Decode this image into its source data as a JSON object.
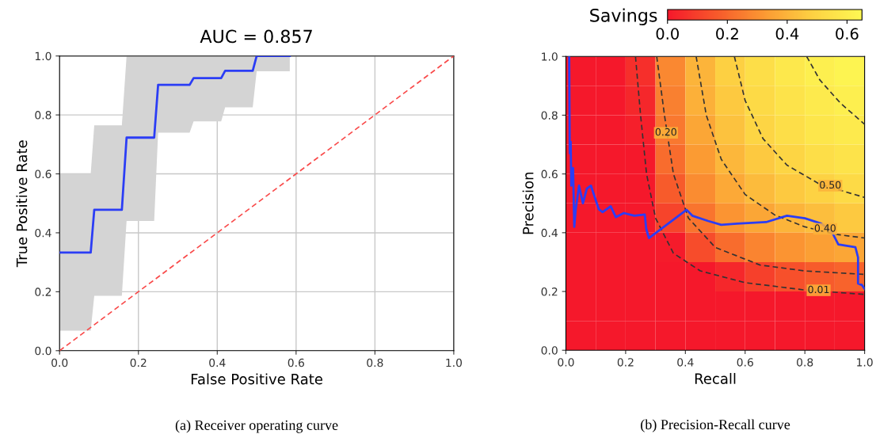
{
  "chart_data": [
    {
      "type": "line",
      "title": "AUC = 0.857",
      "xlabel": "False Positive Rate",
      "ylabel": "True Positive Rate",
      "grid": true,
      "xlim": [
        0,
        1
      ],
      "ylim": [
        0,
        1
      ],
      "xticks": [
        {
          "value": 0,
          "label": "0.0"
        },
        {
          "value": 0.2,
          "label": "0.2"
        },
        {
          "value": 0.4,
          "label": "0.4"
        },
        {
          "value": 0.6,
          "label": "0.6"
        },
        {
          "value": 0.8,
          "label": "0.8"
        },
        {
          "value": 1,
          "label": "1.0"
        }
      ],
      "yticks": [
        {
          "value": 0,
          "label": "0.0"
        },
        {
          "value": 0.2,
          "label": "0.2"
        },
        {
          "value": 0.4,
          "label": "0.4"
        },
        {
          "value": 0.6,
          "label": "0.6"
        },
        {
          "value": 0.8,
          "label": "0.8"
        },
        {
          "value": 1,
          "label": "1.0"
        }
      ],
      "series": [
        {
          "type": "line",
          "color": "#2b3df5",
          "line_style": "solid",
          "x": [
            0,
            0.079,
            0.088,
            0.158,
            0.17,
            0.24,
            0.25,
            0.33,
            0.34,
            0.41,
            0.42,
            0.49,
            0.5,
            0.584
          ],
          "values": [
            0.333,
            0.333,
            0.478,
            0.478,
            0.723,
            0.723,
            0.902,
            0.902,
            0.925,
            0.925,
            0.95,
            0.95,
            1.0,
            1.0
          ],
          "lower": [
            0.068,
            0.068,
            0.186,
            0.186,
            0.44,
            0.44,
            0.74,
            0.74,
            0.778,
            0.778,
            0.826,
            0.826,
            0.948,
            0.948
          ],
          "upper": [
            0.6,
            0.6,
            0.765,
            0.765,
            1.0,
            1.0,
            1.0,
            1.0,
            1.0,
            1.0,
            1.0,
            1.0,
            1.0,
            1.0
          ]
        },
        {
          "type": "line",
          "color": "#f94a4a",
          "line_style": "dashed",
          "x": [
            0,
            1
          ],
          "values": [
            0,
            1
          ]
        }
      ],
      "annotations": [
        "(a) Receiver operating curve"
      ]
    },
    {
      "type": "heatmap",
      "clabel": "Savings",
      "clim": [
        0,
        0.65
      ],
      "cticks": [
        {
          "value": 0,
          "label": "0.0"
        },
        {
          "value": 0.2,
          "label": "0.2"
        },
        {
          "value": 0.4,
          "label": "0.4"
        },
        {
          "value": 0.6,
          "label": "0.6"
        }
      ],
      "categories": [
        null,
        null,
        null,
        null,
        null,
        null,
        null,
        null,
        null,
        null
      ],
      "y_categories": [
        null,
        null,
        null,
        null,
        null,
        null,
        null,
        null,
        null,
        null
      ],
      "cells": [
        [
          0,
          0,
          0.06,
          0.28,
          0.4,
          0.48,
          0.54,
          0.58,
          0.61,
          0.63
        ],
        [
          0,
          0,
          0.04,
          0.26,
          0.39,
          0.46,
          0.52,
          0.56,
          0.59,
          0.61
        ],
        [
          0,
          0,
          0.02,
          0.24,
          0.36,
          0.44,
          0.5,
          0.54,
          0.57,
          0.59
        ],
        [
          0,
          0,
          0,
          0.21,
          0.33,
          0.41,
          0.46,
          0.5,
          0.54,
          0.56
        ],
        [
          0,
          0,
          0,
          0.17,
          0.29,
          0.37,
          0.42,
          0.46,
          0.49,
          0.52
        ],
        [
          0,
          0,
          0,
          0.11,
          0.23,
          0.31,
          0.36,
          0.4,
          0.43,
          0.46
        ],
        [
          0,
          0,
          0,
          0.01,
          0.13,
          0.21,
          0.27,
          0.31,
          0.34,
          0.36
        ],
        [
          0,
          0,
          0,
          0,
          0,
          0.04,
          0.1,
          0.14,
          0.17,
          0.19
        ],
        [
          0,
          0,
          0,
          0,
          0,
          0,
          0,
          0,
          0,
          0
        ],
        [
          0,
          0,
          0,
          0,
          0,
          0,
          0,
          0,
          0,
          0
        ]
      ]
    },
    {
      "type": "line",
      "xlabel": "Recall",
      "ylabel": "Precision",
      "xlim": [
        0,
        1
      ],
      "ylim": [
        0,
        1
      ],
      "xticks": [
        {
          "value": 0,
          "label": "0.0"
        },
        {
          "value": 0.2,
          "label": "0.2"
        },
        {
          "value": 0.4,
          "label": "0.4"
        },
        {
          "value": 0.6,
          "label": "0.6"
        },
        {
          "value": 0.8,
          "label": "0.8"
        },
        {
          "value": 1,
          "label": "1.0"
        }
      ],
      "yticks": [
        {
          "value": 0,
          "label": "0.0"
        },
        {
          "value": 0.2,
          "label": "0.2"
        },
        {
          "value": 0.4,
          "label": "0.4"
        },
        {
          "value": 0.6,
          "label": "0.6"
        },
        {
          "value": 0.8,
          "label": "0.8"
        },
        {
          "value": 1,
          "label": "1.0"
        }
      ],
      "series": [
        {
          "type": "line",
          "color": "#333333",
          "line_style": "dashed",
          "x": [
            0.233,
            0.25,
            0.27,
            0.3,
            0.36,
            0.45,
            0.6,
            0.8,
            1.0
          ],
          "values": [
            1.0,
            0.8,
            0.6,
            0.45,
            0.33,
            0.27,
            0.23,
            0.205,
            0.19
          ]
        },
        {
          "type": "line",
          "color": "#333333",
          "line_style": "dashed",
          "x": [
            0.304,
            0.33,
            0.36,
            0.41,
            0.5,
            0.65,
            0.8,
            1.0
          ],
          "values": [
            1.0,
            0.8,
            0.6,
            0.45,
            0.35,
            0.29,
            0.27,
            0.258
          ]
        },
        {
          "type": "line",
          "color": "#333333",
          "line_style": "dashed",
          "x": [
            0.436,
            0.47,
            0.52,
            0.6,
            0.7,
            0.8,
            0.9,
            1.0
          ],
          "values": [
            1.0,
            0.8,
            0.65,
            0.53,
            0.46,
            0.42,
            0.395,
            0.382
          ]
        },
        {
          "type": "line",
          "color": "#333333",
          "line_style": "dashed",
          "x": [
            0.564,
            0.6,
            0.66,
            0.74,
            0.85,
            1.0
          ],
          "values": [
            1.0,
            0.85,
            0.72,
            0.63,
            0.565,
            0.52
          ]
        },
        {
          "type": "line",
          "color": "#333333",
          "line_style": "dashed",
          "x": [
            0.806,
            0.85,
            0.92,
            1.0
          ],
          "values": [
            1.0,
            0.92,
            0.84,
            0.769
          ]
        },
        {
          "type": "line",
          "color": "#2b3df5",
          "line_style": "solid",
          "x": [
            0.011,
            0.013,
            0.016,
            0.018,
            0.024,
            0.028,
            0.033,
            0.044,
            0.057,
            0.07,
            0.084,
            0.097,
            0.11,
            0.123,
            0.15,
            0.167,
            0.194,
            0.229,
            0.264,
            0.269,
            0.278,
            0.404,
            0.423,
            0.476,
            0.52,
            0.573,
            0.67,
            0.74,
            0.8,
            0.855,
            0.89,
            0.912,
            0.969,
            0.978,
            0.978,
            0.991,
            1.0
          ],
          "values": [
            1.0,
            0.67,
            0.71,
            0.56,
            0.62,
            0.42,
            0.48,
            0.56,
            0.5,
            0.55,
            0.56,
            0.52,
            0.48,
            0.47,
            0.49,
            0.453,
            0.467,
            0.458,
            0.462,
            0.413,
            0.382,
            0.478,
            0.458,
            0.44,
            0.427,
            0.431,
            0.436,
            0.458,
            0.449,
            0.431,
            0.404,
            0.36,
            0.351,
            0.316,
            0.227,
            0.222,
            0.209
          ]
        }
      ],
      "annotations": [
        {
          "text": "0.20",
          "x": 0.335,
          "y": 0.74
        },
        {
          "text": "0.50",
          "x": 0.885,
          "y": 0.56
        },
        {
          "text": "0.40",
          "x": 0.868,
          "y": 0.413
        },
        {
          "text": "0.01",
          "x": 0.846,
          "y": 0.204
        },
        "(b) Precision-Recall curve"
      ]
    }
  ]
}
